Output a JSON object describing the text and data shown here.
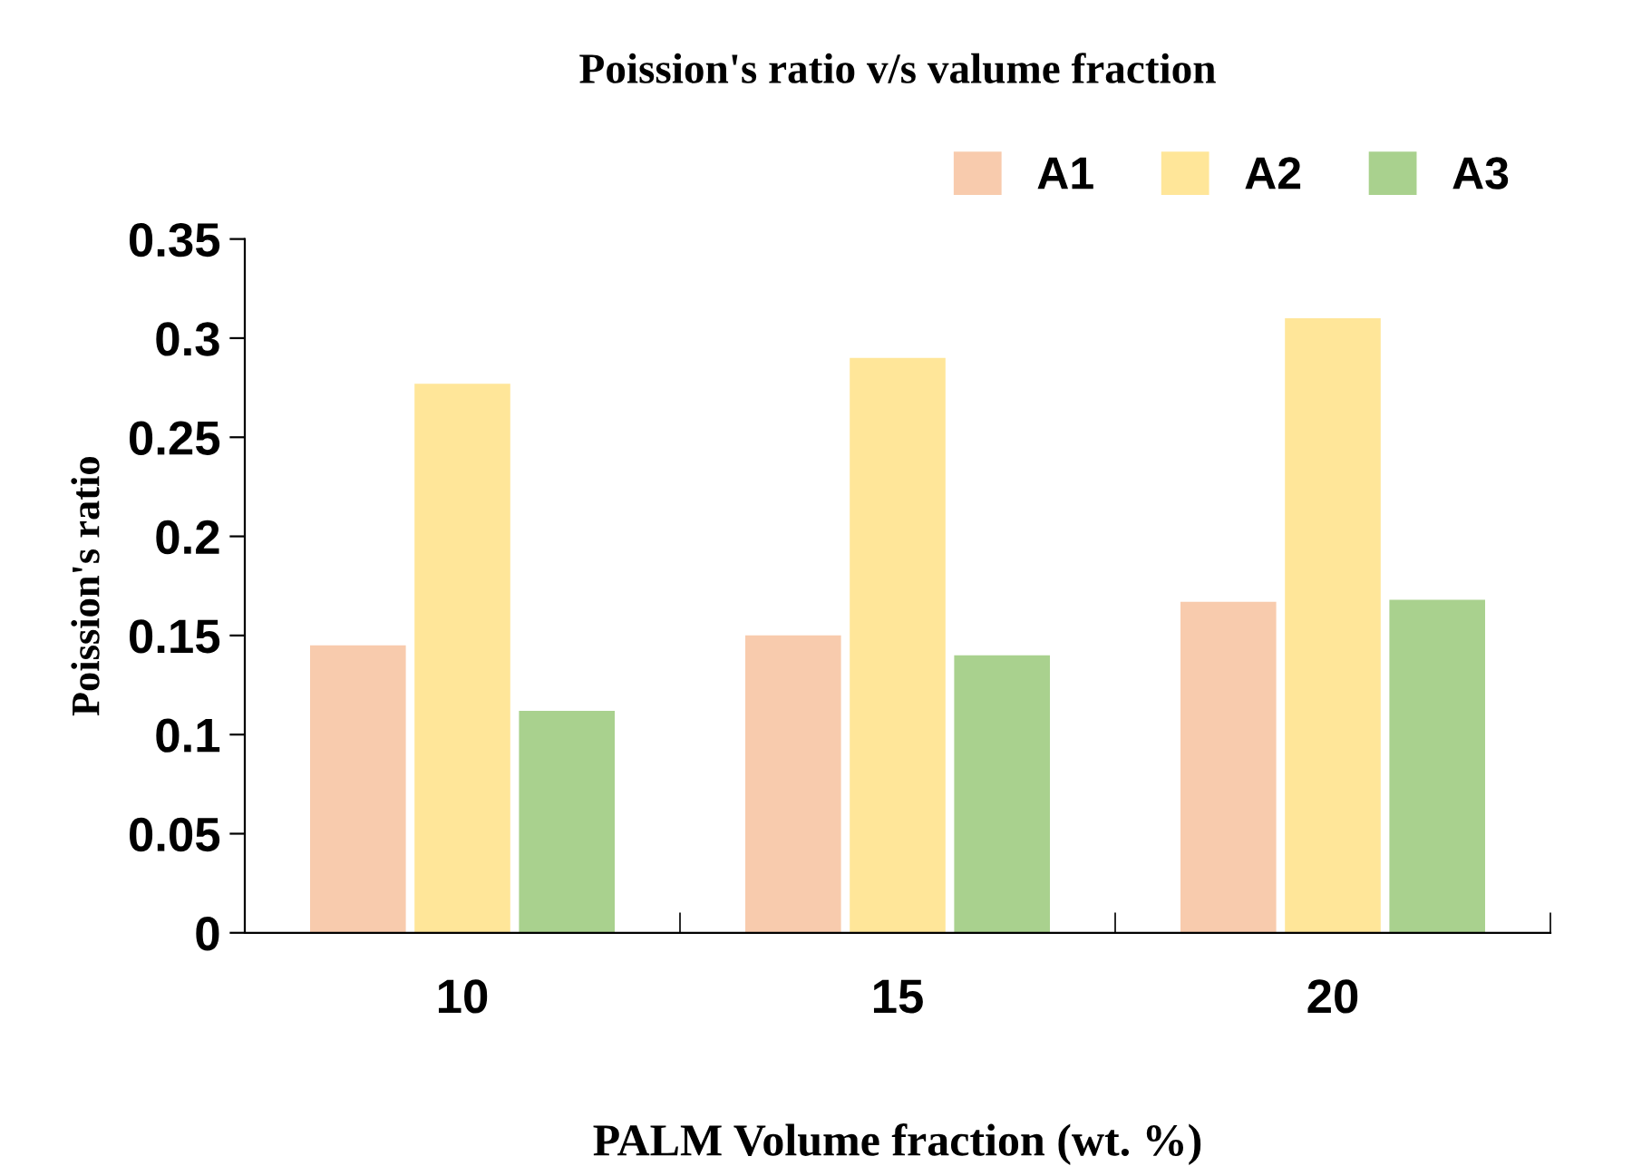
{
  "chart_data": {
    "type": "bar",
    "title": "Poission's ratio v/s valume fraction",
    "xlabel": "PALM Volume fraction (wt. %)",
    "ylabel": "Poission's ratio",
    "categories": [
      "10",
      "15",
      "20"
    ],
    "series": [
      {
        "name": "A1",
        "color": "#f8cbad",
        "values": [
          0.145,
          0.15,
          0.167
        ]
      },
      {
        "name": "A2",
        "color": "#ffe699",
        "values": [
          0.277,
          0.29,
          0.31
        ]
      },
      {
        "name": "A3",
        "color": "#a9d18e",
        "values": [
          0.112,
          0.14,
          0.168
        ]
      }
    ],
    "ylim": [
      0,
      0.35
    ],
    "yticks": [
      {
        "value": 0,
        "label": "0"
      },
      0.05,
      {
        "value": 0.1,
        "label": "0.1"
      },
      0.15,
      {
        "value": 0.2,
        "label": "0.2"
      },
      0.25,
      {
        "value": 0.3,
        "label": "0.3"
      },
      0.35
    ],
    "grid": false,
    "legend": "top right"
  }
}
